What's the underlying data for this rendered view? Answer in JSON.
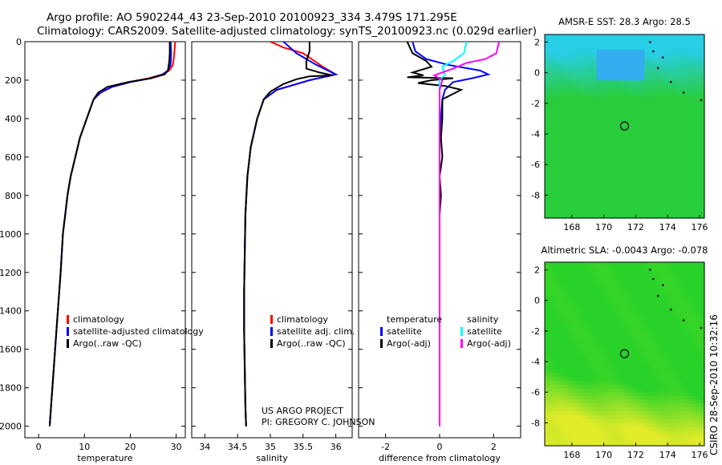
{
  "header": {
    "line1": "Argo profile: AO 5902244_43 23-Sep-2010 20100923_334 3.479S 171.295E",
    "line2": "Climatology: CARS2009. Satellite-adjusted climatology: synTS_20100923.nc (0.029d earlier)"
  },
  "side_label": "CSIRO 28-Sep-2010 10:32:16",
  "credit": {
    "line1": "US ARGO PROJECT",
    "line2": "PI: GREGORY C. JOHNSON"
  },
  "colors": {
    "climatology": "#ff0000",
    "satellite": "#0000ff",
    "argo": "#000000",
    "sal_satellite": "#00ffff",
    "sal_argo": "#ff00ff"
  },
  "chart_data": [
    {
      "type": "line",
      "title": "",
      "xlabel": "temperature",
      "ylabel": "",
      "xlim": [
        -3,
        32
      ],
      "ylim": [
        2060,
        0
      ],
      "xticks": [
        0,
        10,
        20,
        30
      ],
      "yticks": [
        0,
        200,
        400,
        600,
        800,
        1000,
        1200,
        1400,
        1600,
        1800,
        2000
      ],
      "legend": [
        {
          "label": "climatology",
          "color": "#ff0000"
        },
        {
          "label": "satellite-adjusted climatology",
          "color": "#0000ff"
        },
        {
          "label": "Argo(..raw -QC)",
          "color": "#000000"
        }
      ],
      "series": [
        {
          "name": "climatology",
          "color": "#ff0000",
          "points": [
            [
              29.8,
              0
            ],
            [
              29.6,
              60
            ],
            [
              29.3,
              120
            ],
            [
              28.5,
              150
            ],
            [
              27.0,
              170
            ],
            [
              24.0,
              190
            ],
            [
              20.0,
              210
            ],
            [
              16.0,
              235
            ],
            [
              13.5,
              265
            ],
            [
              12.0,
              300
            ],
            [
              10.5,
              400
            ],
            [
              9.0,
              500
            ],
            [
              8.0,
              600
            ],
            [
              7.0,
              700
            ],
            [
              6.3,
              800
            ],
            [
              5.8,
              900
            ],
            [
              5.3,
              1000
            ],
            [
              4.8,
              1200
            ],
            [
              4.2,
              1400
            ],
            [
              3.6,
              1600
            ],
            [
              3.0,
              1800
            ],
            [
              2.4,
              2000
            ]
          ]
        },
        {
          "name": "satellite-adjusted climatology",
          "color": "#0000ff",
          "points": [
            [
              28.8,
              0
            ],
            [
              28.9,
              60
            ],
            [
              28.8,
              120
            ],
            [
              28.2,
              150
            ],
            [
              27.0,
              170
            ],
            [
              24.5,
              190
            ],
            [
              20.0,
              210
            ],
            [
              16.0,
              235
            ],
            [
              13.5,
              265
            ],
            [
              12.0,
              300
            ],
            [
              10.5,
              400
            ],
            [
              9.0,
              500
            ],
            [
              8.0,
              600
            ],
            [
              7.0,
              700
            ],
            [
              6.3,
              800
            ],
            [
              5.8,
              900
            ],
            [
              5.3,
              1000
            ],
            [
              4.8,
              1200
            ],
            [
              4.2,
              1400
            ],
            [
              3.6,
              1600
            ],
            [
              3.0,
              1800
            ],
            [
              2.4,
              2000
            ]
          ]
        },
        {
          "name": "Argo",
          "color": "#000000",
          "points": [
            [
              28.6,
              0
            ],
            [
              28.6,
              60
            ],
            [
              28.5,
              100
            ],
            [
              28.2,
              150
            ],
            [
              27.5,
              170
            ],
            [
              24.5,
              190
            ],
            [
              19.5,
              210
            ],
            [
              15.0,
              235
            ],
            [
              13.0,
              265
            ],
            [
              12.0,
              300
            ],
            [
              10.5,
              400
            ],
            [
              9.0,
              500
            ],
            [
              8.0,
              600
            ],
            [
              7.0,
              700
            ],
            [
              6.3,
              800
            ],
            [
              5.8,
              900
            ],
            [
              5.3,
              1000
            ],
            [
              4.8,
              1200
            ],
            [
              4.2,
              1400
            ],
            [
              3.6,
              1600
            ],
            [
              3.0,
              1800
            ],
            [
              2.4,
              2000
            ]
          ]
        }
      ]
    },
    {
      "type": "line",
      "title": "",
      "xlabel": "salinity",
      "ylabel": "",
      "xlim": [
        33.8,
        36.25
      ],
      "ylim": [
        2060,
        0
      ],
      "xticks": [
        34,
        34.5,
        35,
        35.5,
        36
      ],
      "yticks": [
        0,
        200,
        400,
        600,
        800,
        1000,
        1200,
        1400,
        1600,
        1800,
        2000
      ],
      "legend": [
        {
          "label": "climatology",
          "color": "#ff0000"
        },
        {
          "label": "satellite adj. clim.",
          "color": "#0000ff"
        },
        {
          "label": "Argo(..raw -QC)",
          "color": "#000000"
        }
      ],
      "series": [
        {
          "name": "climatology",
          "color": "#ff0000",
          "points": [
            [
              35.0,
              0
            ],
            [
              35.2,
              30
            ],
            [
              35.5,
              60
            ],
            [
              35.8,
              130
            ],
            [
              36.0,
              170
            ],
            [
              35.6,
              200
            ],
            [
              35.1,
              250
            ],
            [
              34.9,
              300
            ],
            [
              34.8,
              400
            ],
            [
              34.7,
              550
            ],
            [
              34.65,
              700
            ],
            [
              34.62,
              900
            ],
            [
              34.61,
              1100
            ],
            [
              34.6,
              1300
            ],
            [
              34.6,
              1500
            ],
            [
              34.61,
              1700
            ],
            [
              34.62,
              1900
            ],
            [
              34.63,
              2000
            ]
          ]
        },
        {
          "name": "satellite adj. clim.",
          "color": "#0000ff",
          "points": [
            [
              35.2,
              0
            ],
            [
              35.3,
              30
            ],
            [
              35.4,
              60
            ],
            [
              35.7,
              120
            ],
            [
              36.0,
              170
            ],
            [
              35.6,
              200
            ],
            [
              35.1,
              250
            ],
            [
              34.9,
              300
            ],
            [
              34.8,
              400
            ],
            [
              34.7,
              550
            ],
            [
              34.65,
              700
            ],
            [
              34.62,
              900
            ],
            [
              34.61,
              1100
            ],
            [
              34.6,
              1300
            ],
            [
              34.6,
              1500
            ],
            [
              34.61,
              1700
            ],
            [
              34.62,
              1900
            ],
            [
              34.63,
              2000
            ]
          ]
        },
        {
          "name": "Argo",
          "color": "#000000",
          "points": [
            [
              35.6,
              0
            ],
            [
              35.6,
              50
            ],
            [
              35.55,
              100
            ],
            [
              35.55,
              140
            ],
            [
              35.75,
              160
            ],
            [
              35.95,
              175
            ],
            [
              35.6,
              180
            ],
            [
              35.4,
              195
            ],
            [
              35.2,
              220
            ],
            [
              35.0,
              260
            ],
            [
              34.9,
              300
            ],
            [
              34.8,
              400
            ],
            [
              34.7,
              550
            ],
            [
              34.65,
              700
            ],
            [
              34.62,
              900
            ],
            [
              34.61,
              1100
            ],
            [
              34.6,
              1300
            ],
            [
              34.6,
              1500
            ],
            [
              34.61,
              1700
            ],
            [
              34.62,
              1900
            ],
            [
              34.63,
              2000
            ]
          ]
        }
      ]
    },
    {
      "type": "line",
      "title": "",
      "xlabel": "difference from climatology",
      "ylabel": "",
      "xlim": [
        -3,
        3
      ],
      "ylim": [
        2060,
        0
      ],
      "xticks": [
        -2,
        0,
        2
      ],
      "yticks": [
        0,
        200,
        400,
        600,
        800,
        1000,
        1200,
        1400,
        1600,
        1800,
        2000
      ],
      "legend": [
        {
          "label": "temperature",
          "color": ""
        },
        {
          "label": "satellite",
          "color": "#0000ff"
        },
        {
          "label": "Argo(-adj)",
          "color": "#000000"
        },
        {
          "label": "salinity",
          "color": ""
        },
        {
          "label": "satellite",
          "color": "#00ffff"
        },
        {
          "label": "Argo(-adj)",
          "color": "#ff00ff"
        }
      ],
      "series": [
        {
          "name": "temperature satellite",
          "color": "#0000ff",
          "points": [
            [
              -1.0,
              0
            ],
            [
              -0.9,
              50
            ],
            [
              -0.5,
              90
            ],
            [
              0.3,
              120
            ],
            [
              1.5,
              150
            ],
            [
              1.8,
              170
            ],
            [
              1.2,
              190
            ],
            [
              0.5,
              210
            ],
            [
              0.2,
              250
            ],
            [
              0.1,
              300
            ],
            [
              0.05,
              400
            ],
            [
              0,
              500
            ],
            [
              0,
              2000
            ]
          ]
        },
        {
          "name": "temperature Argo",
          "color": "#000000",
          "points": [
            [
              -1.2,
              0
            ],
            [
              -1.0,
              60
            ],
            [
              -0.5,
              100
            ],
            [
              -0.3,
              130
            ],
            [
              -1.0,
              160
            ],
            [
              -0.6,
              175
            ],
            [
              -1.2,
              185
            ],
            [
              0.5,
              190
            ],
            [
              -0.3,
              200
            ],
            [
              -0.8,
              215
            ],
            [
              0.2,
              230
            ],
            [
              0.8,
              250
            ],
            [
              0.1,
              300
            ],
            [
              0.1,
              400
            ],
            [
              0.05,
              500
            ],
            [
              0.1,
              600
            ],
            [
              0.0,
              700
            ],
            [
              0.05,
              800
            ],
            [
              0.0,
              900
            ],
            [
              0.0,
              1000
            ],
            [
              0.0,
              2000
            ]
          ]
        },
        {
          "name": "salinity satellite",
          "color": "#00ffff",
          "points": [
            [
              1.0,
              0
            ],
            [
              0.9,
              60
            ],
            [
              0.5,
              100
            ],
            [
              0.1,
              130
            ],
            [
              0.2,
              170
            ],
            [
              0.0,
              200
            ],
            [
              0.0,
              400
            ],
            [
              0.0,
              2000
            ]
          ]
        },
        {
          "name": "salinity Argo",
          "color": "#ff00ff",
          "points": [
            [
              2.2,
              0
            ],
            [
              2.1,
              60
            ],
            [
              1.7,
              90
            ],
            [
              1.0,
              110
            ],
            [
              0.5,
              140
            ],
            [
              -0.2,
              175
            ],
            [
              0.1,
              200
            ],
            [
              0.0,
              250
            ],
            [
              0.0,
              400
            ],
            [
              0.0,
              2000
            ]
          ]
        }
      ]
    },
    {
      "type": "heatmap",
      "title": "AMSR-E SST: 28.3  Argo: 28.5",
      "xlabel": "",
      "ylabel": "",
      "xlim": [
        166.3,
        176.3
      ],
      "ylim": [
        -9.5,
        2.5
      ],
      "xticks": [
        168,
        170,
        172,
        174,
        176
      ],
      "yticks": [
        2,
        0,
        -2,
        -4,
        -6,
        -8
      ],
      "marker": {
        "lon": 171.3,
        "lat": -3.48
      },
      "field": "sst"
    },
    {
      "type": "heatmap",
      "title": "Altimetric SLA: -0.0043  Argo: -0.078",
      "xlabel": "",
      "ylabel": "",
      "xlim": [
        166.3,
        176.3
      ],
      "ylim": [
        -9.5,
        2.5
      ],
      "xticks": [
        168,
        170,
        172,
        174,
        176
      ],
      "yticks": [
        2,
        0,
        -2,
        -4,
        -6,
        -8
      ],
      "marker": {
        "lon": 171.3,
        "lat": -3.48
      },
      "field": "sla"
    }
  ]
}
